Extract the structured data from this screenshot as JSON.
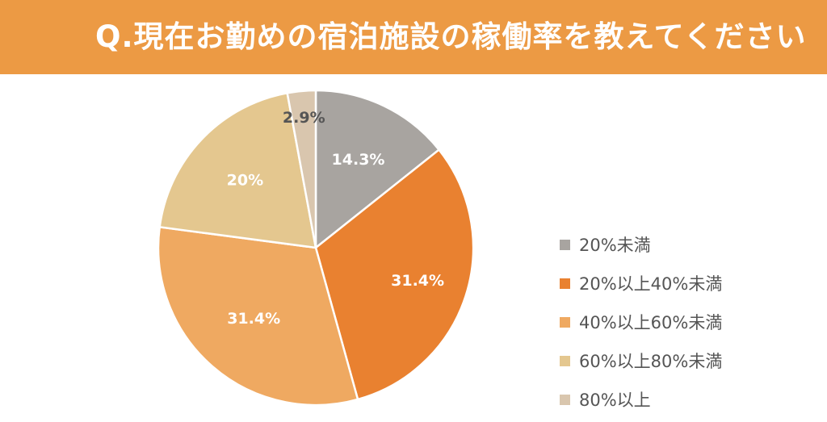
{
  "header": {
    "title": "Q.現在お勤めの宿泊施設の稼働率を教えてください",
    "background_color": "#ec9a44"
  },
  "chart_data": {
    "type": "pie",
    "title": "Q.現在お勤めの宿泊施設の稼働率を教えてください",
    "start_angle": "12 o'clock",
    "direction": "clockwise",
    "legend_position": "right",
    "slices": [
      {
        "label": "20%未満",
        "value": 14.3,
        "data_label": "14.3%",
        "color": "#a8a4a0",
        "label_color": "#ffffff"
      },
      {
        "label": "20%以上40%未満",
        "value": 31.4,
        "data_label": "31.4%",
        "color": "#e98130",
        "label_color": "#ffffff"
      },
      {
        "label": "40%以上60%未満",
        "value": 31.4,
        "data_label": "31.4%",
        "color": "#efa961",
        "label_color": "#ffffff"
      },
      {
        "label": "60%以上80%未満",
        "value": 20,
        "data_label": "20%",
        "color": "#e4c78f",
        "label_color": "#ffffff"
      },
      {
        "label": "80%以上",
        "value": 2.9,
        "data_label": "2.9%",
        "color": "#d9c6ae",
        "label_color": "#555555"
      }
    ]
  }
}
